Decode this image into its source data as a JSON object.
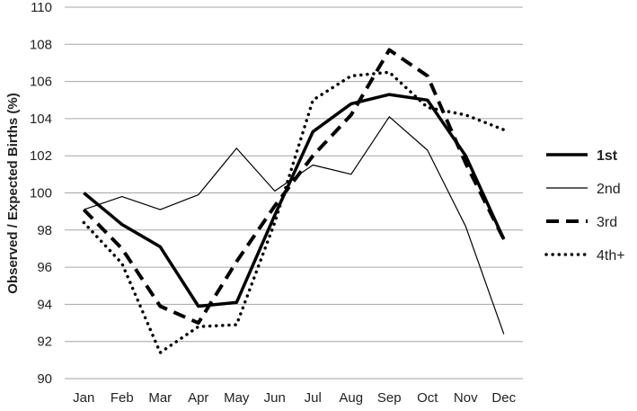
{
  "chart_data": {
    "type": "line",
    "ylabel": "Observed / Expected Births (%)",
    "xlabel": "",
    "ylim": [
      90,
      110
    ],
    "yticks": [
      90,
      92,
      94,
      96,
      98,
      100,
      102,
      104,
      106,
      108,
      110
    ],
    "grid": "horizontal",
    "legend_position": "right",
    "categories": [
      "Jan",
      "Feb",
      "Mar",
      "Apr",
      "May",
      "Jun",
      "Jul",
      "Aug",
      "Sep",
      "Oct",
      "Nov",
      "Dec"
    ],
    "series": [
      {
        "name": "1st",
        "style": "solid-thick",
        "values": [
          100.0,
          98.3,
          97.1,
          93.9,
          94.1,
          98.8,
          103.3,
          104.8,
          105.3,
          105.0,
          102.0,
          97.5
        ]
      },
      {
        "name": "2nd",
        "style": "solid-thin",
        "values": [
          99.1,
          99.8,
          99.1,
          99.9,
          102.4,
          100.1,
          101.5,
          101.0,
          104.1,
          102.3,
          98.2,
          92.4
        ]
      },
      {
        "name": "3rd",
        "style": "dashed",
        "values": [
          99.1,
          97.0,
          93.9,
          93.0,
          96.3,
          99.3,
          102.0,
          104.2,
          107.7,
          106.3,
          101.6,
          97.5
        ]
      },
      {
        "name": "4th+",
        "style": "dotted",
        "values": [
          98.4,
          96.2,
          91.4,
          92.8,
          92.9,
          98.4,
          105.0,
          106.3,
          106.5,
          104.6,
          104.2,
          103.4
        ]
      }
    ],
    "colors": {
      "line": "#000000",
      "grid": "#a6a6a6",
      "text": "#222222"
    }
  }
}
